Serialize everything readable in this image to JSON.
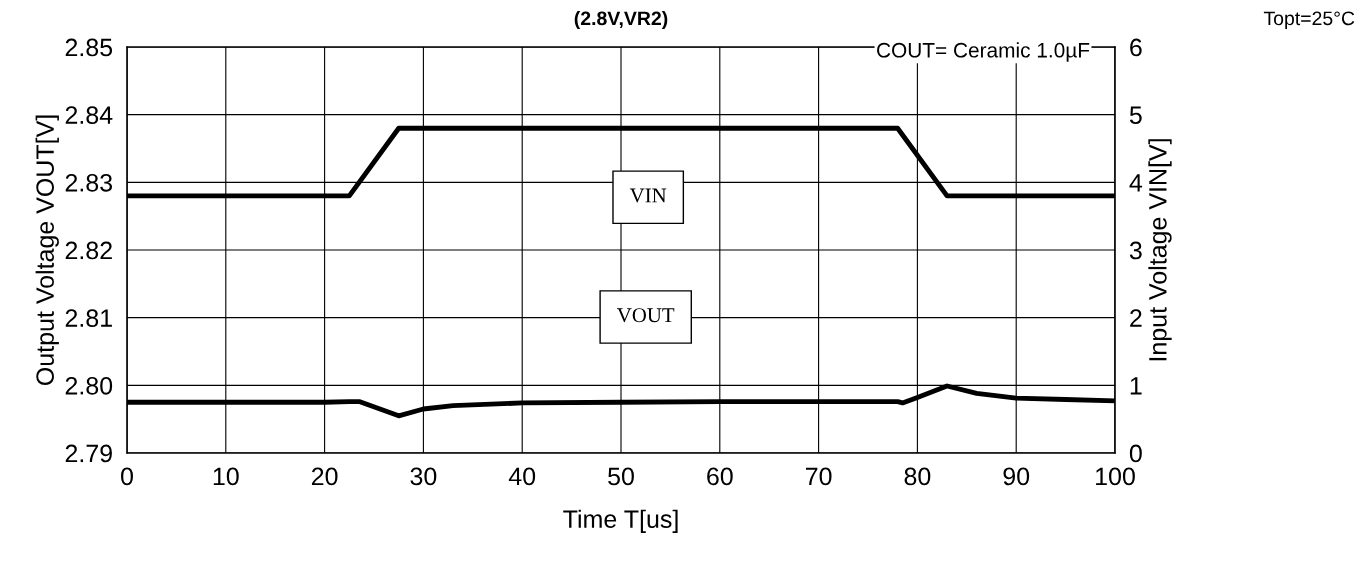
{
  "chart_data": {
    "type": "line",
    "title": "(2.8V,VR2)",
    "xlabel": "Time T[us]",
    "ylabel": "Output Voltage VOUT[V]",
    "y2label": "Input Voltage VIN[V]",
    "annotations": [
      "Topt=25°C",
      "COUT= Ceramic 1.0µF"
    ],
    "xlim": [
      0,
      100
    ],
    "xticks": [
      0,
      10,
      20,
      30,
      40,
      50,
      60,
      70,
      80,
      90,
      100
    ],
    "ylim": [
      2.79,
      2.85
    ],
    "yticks": [
      2.79,
      {
        "value": 2.8,
        "label": "2.80"
      },
      2.81,
      2.82,
      2.83,
      2.84,
      2.85
    ],
    "y2lim": [
      0,
      6
    ],
    "y2ticks": [
      0,
      1,
      2,
      3,
      4,
      5,
      6
    ],
    "grid": true,
    "legend": false,
    "line_style": "solid",
    "marker": "none",
    "series": [
      {
        "name": "VIN",
        "color": "#000000",
        "axis": "y2",
        "x": [
          0,
          22.5,
          27.5,
          78,
          83,
          100
        ],
        "values": [
          3.8,
          3.8,
          4.8,
          4.8,
          3.8,
          3.8
        ]
      },
      {
        "name": "VOUT",
        "color": "#000000",
        "x": [
          0,
          10,
          20,
          22.5,
          23.5,
          27.5,
          30,
          33,
          40,
          50,
          60,
          70,
          78,
          78.5,
          80,
          83,
          86,
          90,
          95,
          100
        ],
        "values": [
          2.7975,
          2.7975,
          2.7975,
          2.7976,
          2.7976,
          2.7955,
          2.7965,
          2.797,
          2.7974,
          2.7975,
          2.7976,
          2.7976,
          2.7976,
          2.7974,
          2.7982,
          2.7999,
          2.7988,
          2.7981,
          2.7979,
          2.7977
        ]
      }
    ]
  }
}
